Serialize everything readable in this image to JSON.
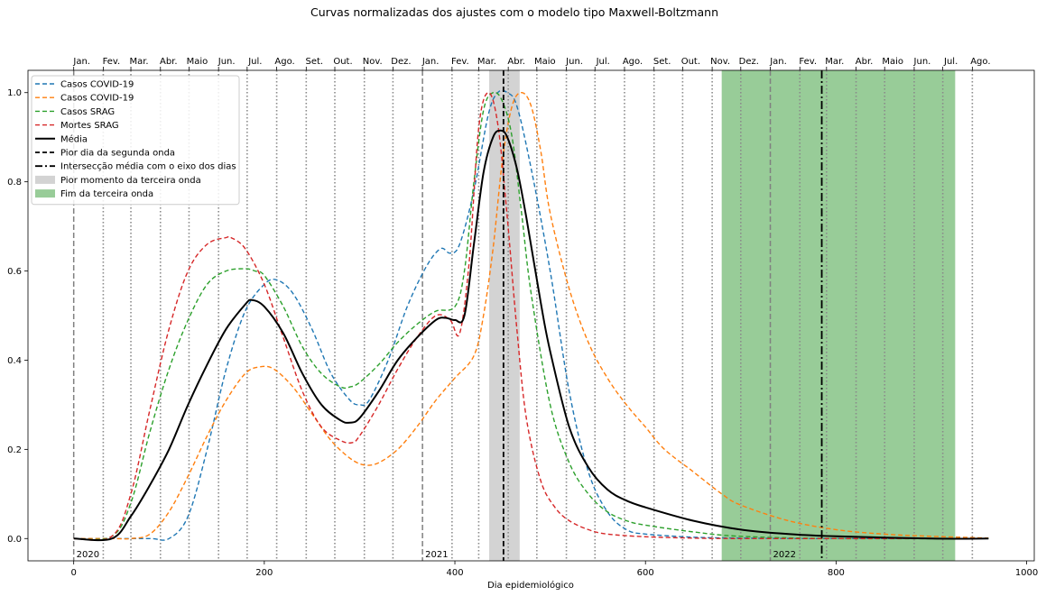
{
  "chart_data": {
    "type": "line",
    "title": "Curvas normalizadas dos ajustes com o modelo tipo Maxwell-Boltzmann",
    "xlabel": "Dia epidemiológico",
    "ylabel": "",
    "xlim": [
      -48,
      1008
    ],
    "ylim": [
      -0.05,
      1.05
    ],
    "xticks": [
      0,
      200,
      400,
      600,
      800,
      1000
    ],
    "yticks": [
      0.0,
      0.2,
      0.4,
      0.6,
      0.8,
      1.0
    ],
    "grid": false,
    "legend_position": "upper-left",
    "top_month_labels": [
      "Jan.",
      "Fev.",
      "Mar.",
      "Abr.",
      "Maio",
      "Jun.",
      "Jul.",
      "Ago.",
      "Set.",
      "Out.",
      "Nov.",
      "Dez.",
      "Jan.",
      "Fev.",
      "Mar.",
      "Abr.",
      "Maio",
      "Jun.",
      "Jul.",
      "Ago.",
      "Set.",
      "Out.",
      "Nov.",
      "Dez.",
      "Jan.",
      "Fev.",
      "Mar.",
      "Abr.",
      "Maio",
      "Jun.",
      "Jul.",
      "Ago."
    ],
    "month_boundaries": [
      0,
      31,
      60,
      91,
      121,
      152,
      182,
      213,
      244,
      274,
      305,
      335,
      366,
      397,
      425,
      456,
      486,
      517,
      547,
      578,
      609,
      639,
      670,
      700,
      731,
      762,
      790,
      821,
      851,
      882,
      912,
      943
    ],
    "year_boundaries": [
      0,
      366,
      731
    ],
    "year_labels": [
      {
        "x": 0,
        "text": "2020"
      },
      {
        "x": 366,
        "text": "2021"
      },
      {
        "x": 731,
        "text": "2022"
      }
    ],
    "worst_day_second_wave": 451,
    "mean_axis_intersection": 785,
    "worst_third_wave_span": [
      436,
      468
    ],
    "end_third_wave_span": [
      680,
      925
    ],
    "series": [
      {
        "name": "Casos COVID-19",
        "color": "#1f77b4",
        "style": "dashed",
        "x": [
          0,
          40,
          80,
          100,
          120,
          140,
          160,
          180,
          200,
          213,
          230,
          250,
          270,
          290,
          300,
          310,
          330,
          350,
          370,
          385,
          395,
          405,
          420,
          435,
          445,
          455,
          465,
          480,
          500,
          520,
          540,
          560,
          580,
          600,
          650,
          700,
          800,
          960
        ],
        "y": [
          0,
          0,
          0,
          0,
          0.05,
          0.2,
          0.38,
          0.51,
          0.57,
          0.58,
          0.55,
          0.47,
          0.37,
          0.31,
          0.3,
          0.31,
          0.4,
          0.52,
          0.61,
          0.65,
          0.64,
          0.66,
          0.78,
          0.95,
          1.0,
          1.0,
          0.97,
          0.83,
          0.6,
          0.33,
          0.15,
          0.06,
          0.02,
          0.01,
          0.003,
          0.001,
          0,
          0
        ]
      },
      {
        "name": "Casos COVID-19",
        "color": "#ff7f0e",
        "style": "dashed",
        "x": [
          0,
          40,
          60,
          80,
          100,
          120,
          140,
          160,
          180,
          195,
          210,
          230,
          250,
          270,
          290,
          305,
          320,
          340,
          360,
          380,
          400,
          420,
          430,
          440,
          450,
          460,
          470,
          480,
          490,
          500,
          520,
          540,
          560,
          580,
          600,
          620,
          650,
          680,
          700,
          750,
          800,
          850,
          900,
          960
        ],
        "y": [
          0,
          0,
          0,
          0.01,
          0.06,
          0.14,
          0.23,
          0.31,
          0.37,
          0.385,
          0.38,
          0.34,
          0.28,
          0.22,
          0.18,
          0.165,
          0.17,
          0.2,
          0.25,
          0.31,
          0.36,
          0.41,
          0.5,
          0.65,
          0.85,
          0.97,
          1.0,
          0.97,
          0.87,
          0.73,
          0.56,
          0.44,
          0.36,
          0.3,
          0.25,
          0.2,
          0.15,
          0.1,
          0.075,
          0.04,
          0.02,
          0.01,
          0.005,
          0.001
        ]
      },
      {
        "name": "Casos SRAG",
        "color": "#2ca02c",
        "style": "dashed",
        "x": [
          0,
          40,
          60,
          80,
          100,
          120,
          140,
          160,
          180,
          190,
          200,
          220,
          240,
          260,
          280,
          290,
          300,
          320,
          340,
          360,
          380,
          400,
          410,
          420,
          430,
          440,
          450,
          460,
          470,
          480,
          500,
          520,
          540,
          560,
          580,
          600,
          650,
          700,
          800,
          960
        ],
        "y": [
          0,
          0.005,
          0.08,
          0.24,
          0.38,
          0.49,
          0.57,
          0.6,
          0.605,
          0.6,
          0.59,
          0.52,
          0.43,
          0.37,
          0.34,
          0.34,
          0.35,
          0.39,
          0.44,
          0.48,
          0.51,
          0.52,
          0.6,
          0.8,
          0.96,
          1.0,
          0.98,
          0.9,
          0.73,
          0.55,
          0.3,
          0.17,
          0.1,
          0.06,
          0.04,
          0.03,
          0.015,
          0.005,
          0,
          0
        ]
      },
      {
        "name": "Mortes SRAG",
        "color": "#d62728",
        "style": "dashed",
        "x": [
          0,
          40,
          60,
          80,
          100,
          120,
          140,
          160,
          165,
          180,
          200,
          220,
          240,
          260,
          280,
          292,
          300,
          320,
          340,
          360,
          380,
          395,
          405,
          415,
          425,
          435,
          445,
          455,
          465,
          475,
          490,
          505,
          520,
          540,
          560,
          600,
          650,
          700,
          800,
          960
        ],
        "y": [
          0,
          0.005,
          0.1,
          0.29,
          0.47,
          0.6,
          0.66,
          0.675,
          0.675,
          0.65,
          0.57,
          0.45,
          0.33,
          0.25,
          0.22,
          0.215,
          0.23,
          0.3,
          0.38,
          0.45,
          0.5,
          0.49,
          0.46,
          0.62,
          0.92,
          1.0,
          0.93,
          0.72,
          0.47,
          0.27,
          0.13,
          0.07,
          0.04,
          0.02,
          0.01,
          0.004,
          0.001,
          0,
          0,
          0
        ]
      },
      {
        "name": "Média",
        "color": "#000000",
        "style": "solid",
        "x": [
          0,
          40,
          60,
          80,
          100,
          120,
          140,
          160,
          180,
          187,
          200,
          220,
          240,
          260,
          280,
          290,
          300,
          320,
          340,
          360,
          380,
          390,
          400,
          410,
          420,
          430,
          440,
          448,
          455,
          465,
          475,
          490,
          500,
          520,
          540,
          560,
          580,
          600,
          650,
          700,
          750,
          800,
          900,
          960
        ],
        "y": [
          0,
          0,
          0.05,
          0.12,
          0.2,
          0.3,
          0.39,
          0.47,
          0.525,
          0.535,
          0.52,
          0.46,
          0.37,
          0.3,
          0.265,
          0.26,
          0.27,
          0.33,
          0.4,
          0.45,
          0.49,
          0.495,
          0.49,
          0.5,
          0.66,
          0.82,
          0.9,
          0.915,
          0.9,
          0.83,
          0.72,
          0.53,
          0.42,
          0.25,
          0.16,
          0.11,
          0.085,
          0.07,
          0.04,
          0.02,
          0.01,
          0.005,
          0,
          0
        ]
      }
    ],
    "legend": [
      {
        "label": "Casos COVID-19",
        "kind": "line",
        "color": "#1f77b4",
        "dash": "5,3",
        "width": 1.4
      },
      {
        "label": "Casos COVID-19",
        "kind": "line",
        "color": "#ff7f0e",
        "dash": "5,3",
        "width": 1.4
      },
      {
        "label": "Casos SRAG",
        "kind": "line",
        "color": "#2ca02c",
        "dash": "5,3",
        "width": 1.4
      },
      {
        "label": "Mortes SRAG",
        "kind": "line",
        "color": "#d62728",
        "dash": "5,3",
        "width": 1.4
      },
      {
        "label": "Média",
        "kind": "line",
        "color": "#000000",
        "dash": "",
        "width": 2
      },
      {
        "label": "Pior dia da segunda onda",
        "kind": "line",
        "color": "#000000",
        "dash": "5,3",
        "width": 1.8
      },
      {
        "label": "Intersecção média com o eixo dos dias",
        "kind": "line",
        "color": "#000000",
        "dash": "8,3,2,3",
        "width": 1.8
      },
      {
        "label": "Pior momento da terceira onda",
        "kind": "patch",
        "color": "#d3d3d3"
      },
      {
        "label": "Fim da terceira onda",
        "kind": "patch",
        "color": "#98cc98"
      }
    ]
  }
}
